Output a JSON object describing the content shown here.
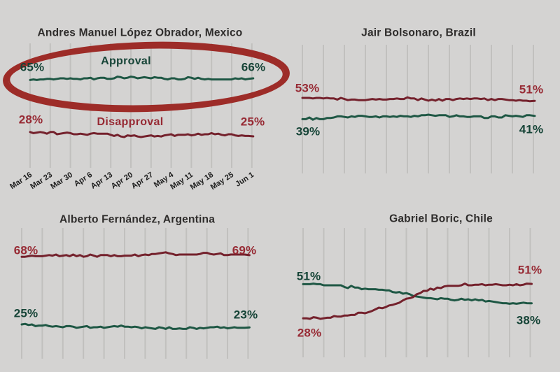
{
  "page": {
    "background": "#d4d3d2",
    "description": "Weekly approval vs disapproval tracking lines for four Latin American presidents, Mar 16 to Jun 1"
  },
  "colors": {
    "green_line": "#1e5744",
    "red_line": "#74212c",
    "green_text": "#164437",
    "red_text": "#972a34",
    "title_text": "#2e2c2b",
    "axis_text": "#1d1d1d",
    "grid": "#c1c0be",
    "ellipse": "#9d2c28"
  },
  "chart_data": [
    {
      "type": "line",
      "id": "mexico",
      "title": "Andres Manuel López Obrador, Mexico",
      "categories": [
        "Mar 16",
        "Mar 23",
        "Mar 30",
        "Apr 6",
        "Apr 13",
        "Apr 20",
        "Apr 27",
        "May 4",
        "May 11",
        "May 18",
        "May 25",
        "Jun 1"
      ],
      "grid": true,
      "legend_position": "inline",
      "series": [
        {
          "key": "approval",
          "name": "Approval",
          "color": "#1e5744",
          "start_label": "65%",
          "end_label": "66%",
          "values": [
            65,
            65.2,
            65.8,
            65.6,
            66,
            66.9,
            66.4,
            66,
            65.8,
            65.6,
            65.4,
            66
          ]
        },
        {
          "key": "disapproval",
          "name": "Disapproval",
          "color": "#74212c",
          "start_label": "28%",
          "end_label": "25%",
          "values": [
            28,
            27.6,
            26.8,
            26.6,
            26.2,
            25,
            25.3,
            25.8,
            26.5,
            27,
            26,
            25
          ]
        }
      ],
      "annotation": {
        "shape": "hand-drawn ellipse",
        "highlights": "Approval line",
        "color": "#9d2c28"
      }
    },
    {
      "type": "line",
      "id": "brazil",
      "title": "Jair Bolsonaro, Brazil",
      "grid": true,
      "series": [
        {
          "key": "disapproval",
          "name": "Disapproval",
          "color": "#74212c",
          "start_label": "53%",
          "end_label": "51%",
          "values": [
            53,
            52.8,
            52.2,
            51.6,
            52,
            52.6,
            51.6,
            52.2,
            52.4,
            52,
            51.8,
            51
          ]
        },
        {
          "key": "approval",
          "name": "Approval",
          "color": "#1e5744",
          "start_label": "39%",
          "end_label": "41%",
          "values": [
            39,
            39.2,
            40.5,
            40.6,
            40.4,
            40.6,
            41.5,
            41.2,
            40.6,
            40.4,
            40.8,
            41
          ]
        }
      ]
    },
    {
      "type": "line",
      "id": "argentina",
      "title": "Alberto Fernández, Argentina",
      "grid": true,
      "series": [
        {
          "key": "disapproval",
          "name": "Disapproval",
          "color": "#74212c",
          "start_label": "68%",
          "end_label": "69%",
          "values": [
            68,
            68.6,
            68.8,
            68.5,
            68.9,
            68.8,
            69.3,
            70.3,
            69,
            69.8,
            69.2,
            69
          ]
        },
        {
          "key": "approval",
          "name": "Approval",
          "color": "#1e5744",
          "start_label": "25%",
          "end_label": "23%",
          "values": [
            25,
            24,
            23.6,
            23.2,
            23.2,
            23.6,
            23,
            22.4,
            22,
            23,
            22.8,
            23
          ]
        }
      ]
    },
    {
      "type": "line",
      "id": "chile",
      "title": "Gabriel Boric, Chile",
      "grid": true,
      "series": [
        {
          "key": "approval",
          "name": "Approval",
          "color": "#1e5744",
          "start_label": "51%",
          "end_label": "38%",
          "values": [
            51,
            50.5,
            49.3,
            48,
            46.8,
            44.2,
            41.2,
            40.2,
            40.3,
            39.4,
            37.8,
            38
          ]
        },
        {
          "key": "disapproval",
          "name": "Disapproval",
          "color": "#74212c",
          "start_label": "28%",
          "end_label": "51%",
          "values": [
            28,
            28,
            29.5,
            32,
            35.5,
            40.5,
            47,
            49.8,
            50.6,
            50.2,
            50.8,
            51
          ]
        }
      ]
    }
  ]
}
